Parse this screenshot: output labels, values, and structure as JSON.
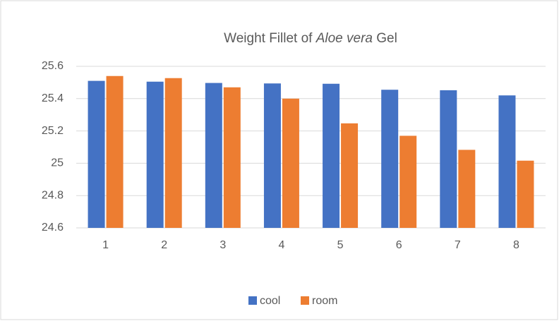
{
  "chart_data": {
    "type": "bar",
    "title": [
      {
        "text": "Weight Fillet of "
      },
      {
        "text": "Aloe vera",
        "italic": true
      },
      {
        "text": " Gel"
      }
    ],
    "categories": [
      "1",
      "2",
      "3",
      "4",
      "5",
      "6",
      "7",
      "8"
    ],
    "series": [
      {
        "name": "cool",
        "color": "#4472c4",
        "values": [
          25.51,
          25.505,
          25.497,
          25.494,
          25.492,
          25.455,
          25.452,
          25.42
        ]
      },
      {
        "name": "room",
        "color": "#ed7d31",
        "values": [
          25.54,
          25.527,
          25.47,
          25.4,
          25.247,
          25.17,
          25.083,
          25.016
        ]
      }
    ],
    "ylim": [
      24.6,
      25.6
    ],
    "yticks": [
      24.6,
      24.8,
      25,
      25.2,
      25.4,
      25.6
    ],
    "grid": true,
    "legend": "bottom"
  }
}
